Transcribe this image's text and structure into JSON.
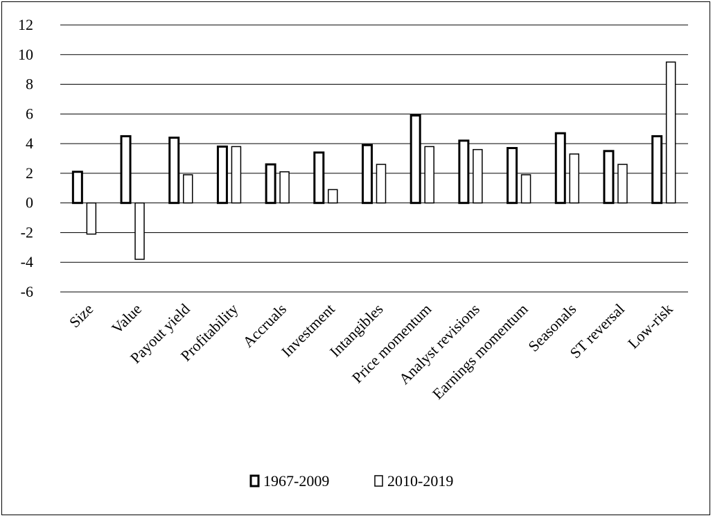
{
  "chart_data": {
    "type": "bar",
    "title": "",
    "xlabel": "",
    "ylabel": "",
    "ylim": [
      -6,
      12
    ],
    "yticks": [
      -6,
      -4,
      -2,
      0,
      2,
      4,
      6,
      8,
      10,
      12
    ],
    "ytick_labels": [
      "-6",
      "-4",
      "-2",
      "0",
      "2",
      "4",
      "6",
      "8",
      "10",
      "12"
    ],
    "grid": true,
    "legend_position": "bottom",
    "categories": [
      "Size",
      "Value",
      "Payout yield",
      "Profitability",
      "Accruals",
      "Investment",
      "Intangibles",
      "Price momentum",
      "Analyst revisions",
      "Earnings momentum",
      "Seasonals",
      "ST reversal",
      "Low-risk"
    ],
    "series": [
      {
        "name": "1967-2009",
        "values": [
          2.1,
          4.5,
          4.4,
          3.8,
          2.6,
          3.4,
          3.9,
          5.9,
          4.2,
          3.7,
          4.7,
          3.5,
          4.5
        ],
        "color": "#ffffff",
        "stroke": "#000000",
        "stroke_weight": "bold"
      },
      {
        "name": "2010-2019",
        "values": [
          -2.1,
          -3.8,
          1.9,
          3.8,
          2.1,
          0.9,
          2.6,
          3.8,
          3.6,
          1.9,
          3.3,
          2.6,
          9.5
        ],
        "color": "#ffffff",
        "stroke": "#000000",
        "stroke_weight": "thin"
      }
    ]
  }
}
